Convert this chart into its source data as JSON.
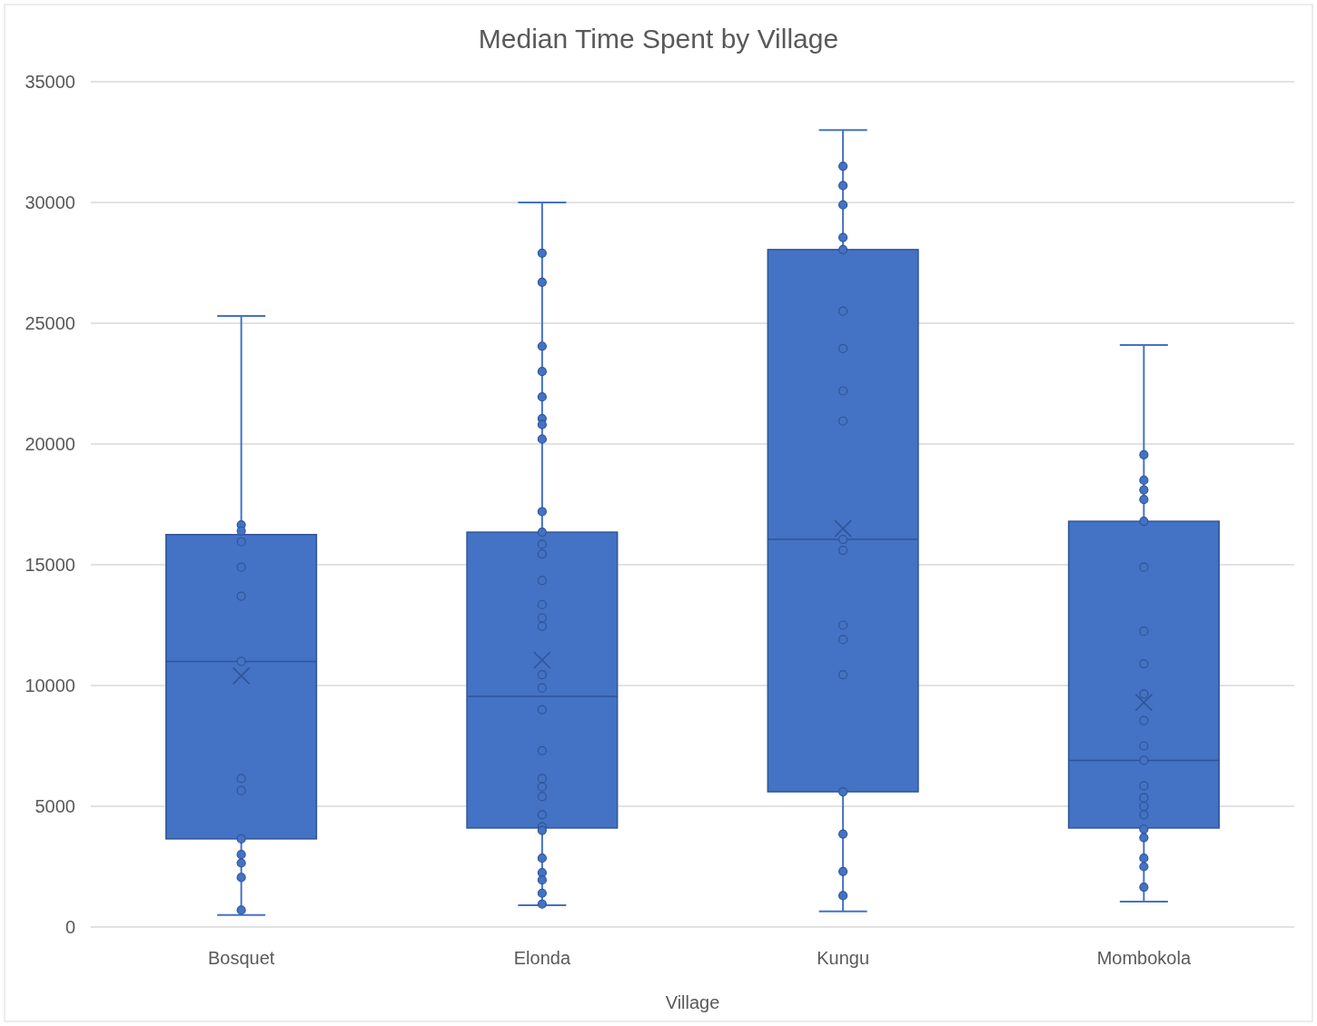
{
  "chart_data": {
    "type": "box",
    "title": "Median Time Spent by Village",
    "xlabel": "Village",
    "categories": [
      "Bosquet",
      "Elonda",
      "Kungu",
      "Mombokola"
    ],
    "color": "#4472c4",
    "boxes": [
      {
        "low": 500,
        "q1": 3650,
        "median": 11000,
        "q3": 16250,
        "high": 25300,
        "mean": 10400
      },
      {
        "low": 900,
        "q1": 4100,
        "median": 9550,
        "q3": 16350,
        "high": 30000,
        "mean": 11050
      },
      {
        "low": 650,
        "q1": 5600,
        "median": 16050,
        "q3": 28050,
        "high": 33000,
        "mean": 16500
      },
      {
        "low": 1050,
        "q1": 4100,
        "median": 6900,
        "q3": 16800,
        "high": 24100,
        "mean": 9300
      }
    ],
    "series": [
      {
        "type": "scatter",
        "color": "#4472c4",
        "x": [
          "Bosquet",
          "Bosquet",
          "Bosquet",
          "Bosquet",
          "Bosquet",
          "Bosquet",
          "Bosquet",
          "Bosquet",
          "Bosquet",
          "Bosquet",
          "Bosquet",
          "Bosquet",
          "Bosquet",
          "Elonda",
          "Elonda",
          "Elonda",
          "Elonda",
          "Elonda",
          "Elonda",
          "Elonda",
          "Elonda",
          "Elonda",
          "Elonda",
          "Elonda",
          "Elonda",
          "Elonda",
          "Elonda",
          "Elonda",
          "Elonda",
          "Elonda",
          "Elonda",
          "Elonda",
          "Elonda",
          "Elonda",
          "Elonda",
          "Elonda",
          "Elonda",
          "Elonda",
          "Elonda",
          "Elonda",
          "Elonda",
          "Elonda",
          "Elonda",
          "Elonda",
          "Kungu",
          "Kungu",
          "Kungu",
          "Kungu",
          "Kungu",
          "Kungu",
          "Kungu",
          "Kungu",
          "Kungu",
          "Kungu",
          "Kungu",
          "Kungu",
          "Kungu",
          "Kungu",
          "Kungu",
          "Kungu",
          "Kungu",
          "Kungu",
          "Mombokola",
          "Mombokola",
          "Mombokola",
          "Mombokola",
          "Mombokola",
          "Mombokola",
          "Mombokola",
          "Mombokola",
          "Mombokola",
          "Mombokola",
          "Mombokola",
          "Mombokola",
          "Mombokola",
          "Mombokola",
          "Mombokola",
          "Mombokola",
          "Mombokola",
          "Mombokola",
          "Mombokola",
          "Mombokola",
          "Mombokola"
        ],
        "values": [
          16650,
          16400,
          15950,
          14900,
          13700,
          11000,
          6150,
          5650,
          3650,
          3000,
          2650,
          2050,
          700,
          27900,
          26700,
          24050,
          23000,
          21950,
          21050,
          20800,
          20200,
          17200,
          16350,
          15850,
          15450,
          14350,
          13350,
          12800,
          12450,
          10450,
          9900,
          9000,
          7300,
          6150,
          5800,
          5400,
          4650,
          4150,
          4000,
          2850,
          2250,
          1950,
          1400,
          950,
          31500,
          30700,
          29900,
          28550,
          28050,
          25500,
          23950,
          22200,
          20950,
          16050,
          15600,
          12500,
          11900,
          10450,
          5600,
          3850,
          2300,
          1300,
          19550,
          18500,
          18100,
          17700,
          16800,
          14900,
          12250,
          10900,
          9650,
          8550,
          7500,
          6900,
          5850,
          5350,
          5000,
          4650,
          4050,
          3700,
          2850,
          2500,
          1650
        ]
      }
    ],
    "ylim": [
      0,
      35000
    ],
    "yticks": [
      0,
      5000,
      10000,
      15000,
      20000,
      25000,
      30000,
      35000
    ],
    "grid": "y",
    "marker": "circle"
  }
}
